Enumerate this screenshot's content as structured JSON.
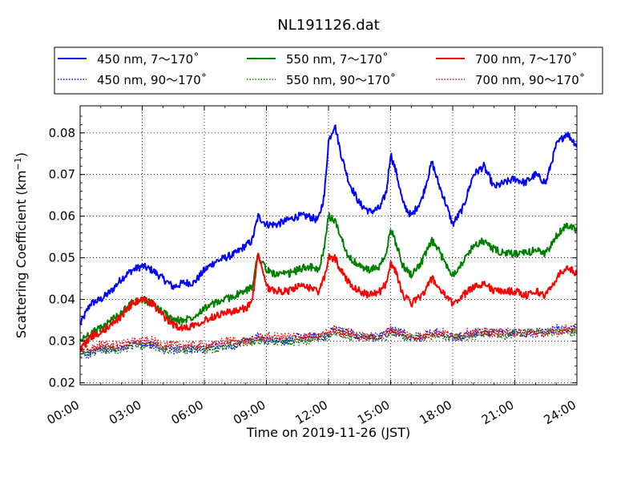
{
  "chart_data": {
    "type": "line",
    "title": "NL191126.dat",
    "xlabel": "Time on 2019-11-26 (JST)",
    "ylabel_main": "Scattering Coefficient (km",
    "ylabel_sup": "−1",
    "ylabel_close": ")",
    "xlim": [
      "2019-11-26 00:00",
      "2019-11-27 00:00"
    ],
    "ylim": [
      0.0195,
      0.0865
    ],
    "x_ticks": [
      "00:00",
      "03:00",
      "06:00",
      "09:00",
      "12:00",
      "15:00",
      "18:00",
      "21:00",
      "24:00"
    ],
    "y_ticks": [
      "0.02",
      "0.03",
      "0.04",
      "0.05",
      "0.06",
      "0.07",
      "0.08"
    ],
    "grid": true,
    "legend_placement": "top-center, above plot",
    "x_hours": [
      0,
      0.5,
      1,
      1.5,
      2,
      2.5,
      3,
      3.5,
      4,
      4.5,
      5,
      5.5,
      6,
      6.5,
      7,
      7.5,
      8,
      8.3,
      8.6,
      9,
      9.5,
      10,
      10.5,
      11,
      11.5,
      11.8,
      12,
      12.3,
      12.6,
      13,
      13.5,
      14,
      14.5,
      14.8,
      15,
      15.3,
      15.6,
      16,
      16.5,
      17,
      17.3,
      17.6,
      18,
      18.5,
      19,
      19.5,
      20,
      20.5,
      21,
      21.5,
      22,
      22.5,
      23,
      23.5,
      24
    ],
    "series": [
      {
        "name": "450 nm, 7～170˚",
        "style": "solid",
        "color": "#0000ff",
        "values": [
          0.034,
          0.039,
          0.04,
          0.042,
          0.045,
          0.047,
          0.048,
          0.047,
          0.045,
          0.043,
          0.044,
          0.044,
          0.047,
          0.049,
          0.05,
          0.051,
          0.053,
          0.054,
          0.06,
          0.058,
          0.058,
          0.059,
          0.06,
          0.06,
          0.059,
          0.065,
          0.078,
          0.082,
          0.075,
          0.068,
          0.063,
          0.061,
          0.062,
          0.066,
          0.075,
          0.07,
          0.063,
          0.06,
          0.064,
          0.073,
          0.068,
          0.064,
          0.058,
          0.062,
          0.07,
          0.072,
          0.067,
          0.068,
          0.069,
          0.068,
          0.07,
          0.068,
          0.077,
          0.08,
          0.077
        ]
      },
      {
        "name": "450 nm, 90～170˚",
        "style": "dotted",
        "color": "#0000ff",
        "values": [
          0.027,
          0.027,
          0.028,
          0.028,
          0.028,
          0.029,
          0.029,
          0.029,
          0.028,
          0.028,
          0.028,
          0.028,
          0.028,
          0.029,
          0.029,
          0.029,
          0.03,
          0.03,
          0.031,
          0.03,
          0.03,
          0.03,
          0.031,
          0.031,
          0.031,
          0.031,
          0.032,
          0.033,
          0.032,
          0.032,
          0.031,
          0.031,
          0.031,
          0.032,
          0.033,
          0.032,
          0.032,
          0.031,
          0.031,
          0.032,
          0.032,
          0.031,
          0.031,
          0.031,
          0.032,
          0.032,
          0.032,
          0.032,
          0.032,
          0.032,
          0.032,
          0.032,
          0.033,
          0.033,
          0.033
        ]
      },
      {
        "name": "550 nm, 7～170˚",
        "style": "solid",
        "color": "#008000",
        "values": [
          0.03,
          0.032,
          0.033,
          0.035,
          0.037,
          0.039,
          0.04,
          0.039,
          0.037,
          0.035,
          0.035,
          0.036,
          0.038,
          0.039,
          0.04,
          0.041,
          0.042,
          0.043,
          0.051,
          0.047,
          0.046,
          0.046,
          0.047,
          0.048,
          0.047,
          0.052,
          0.06,
          0.059,
          0.055,
          0.05,
          0.048,
          0.047,
          0.048,
          0.051,
          0.057,
          0.053,
          0.048,
          0.046,
          0.049,
          0.054,
          0.052,
          0.049,
          0.046,
          0.049,
          0.053,
          0.054,
          0.052,
          0.051,
          0.051,
          0.051,
          0.052,
          0.051,
          0.055,
          0.058,
          0.057
        ]
      },
      {
        "name": "550 nm, 90～170˚",
        "style": "dotted",
        "color": "#008000",
        "values": [
          0.027,
          0.027,
          0.028,
          0.028,
          0.028,
          0.029,
          0.029,
          0.029,
          0.028,
          0.028,
          0.028,
          0.028,
          0.028,
          0.028,
          0.029,
          0.029,
          0.03,
          0.03,
          0.03,
          0.03,
          0.03,
          0.03,
          0.03,
          0.03,
          0.031,
          0.031,
          0.031,
          0.032,
          0.032,
          0.031,
          0.031,
          0.031,
          0.031,
          0.031,
          0.032,
          0.032,
          0.031,
          0.031,
          0.031,
          0.031,
          0.031,
          0.031,
          0.031,
          0.031,
          0.031,
          0.032,
          0.032,
          0.031,
          0.032,
          0.032,
          0.032,
          0.032,
          0.032,
          0.032,
          0.032
        ]
      },
      {
        "name": "700 nm, 7～170˚",
        "style": "solid",
        "color": "#ff0000",
        "values": [
          0.028,
          0.031,
          0.032,
          0.034,
          0.036,
          0.039,
          0.04,
          0.039,
          0.036,
          0.034,
          0.033,
          0.034,
          0.035,
          0.036,
          0.037,
          0.037,
          0.038,
          0.039,
          0.051,
          0.043,
          0.042,
          0.042,
          0.043,
          0.043,
          0.042,
          0.045,
          0.05,
          0.05,
          0.047,
          0.044,
          0.042,
          0.041,
          0.042,
          0.044,
          0.049,
          0.046,
          0.041,
          0.039,
          0.041,
          0.045,
          0.043,
          0.041,
          0.039,
          0.041,
          0.043,
          0.044,
          0.042,
          0.042,
          0.042,
          0.041,
          0.042,
          0.041,
          0.045,
          0.048,
          0.046
        ]
      },
      {
        "name": "700 nm, 90～170˚",
        "style": "dotted",
        "color": "#ff0000",
        "values": [
          0.028,
          0.028,
          0.029,
          0.029,
          0.029,
          0.03,
          0.03,
          0.03,
          0.029,
          0.029,
          0.029,
          0.029,
          0.029,
          0.029,
          0.03,
          0.03,
          0.03,
          0.03,
          0.031,
          0.031,
          0.031,
          0.031,
          0.031,
          0.031,
          0.031,
          0.032,
          0.032,
          0.033,
          0.032,
          0.032,
          0.031,
          0.031,
          0.031,
          0.032,
          0.033,
          0.032,
          0.032,
          0.031,
          0.031,
          0.032,
          0.032,
          0.032,
          0.031,
          0.032,
          0.032,
          0.032,
          0.032,
          0.032,
          0.032,
          0.032,
          0.032,
          0.032,
          0.032,
          0.033,
          0.033
        ]
      }
    ]
  }
}
